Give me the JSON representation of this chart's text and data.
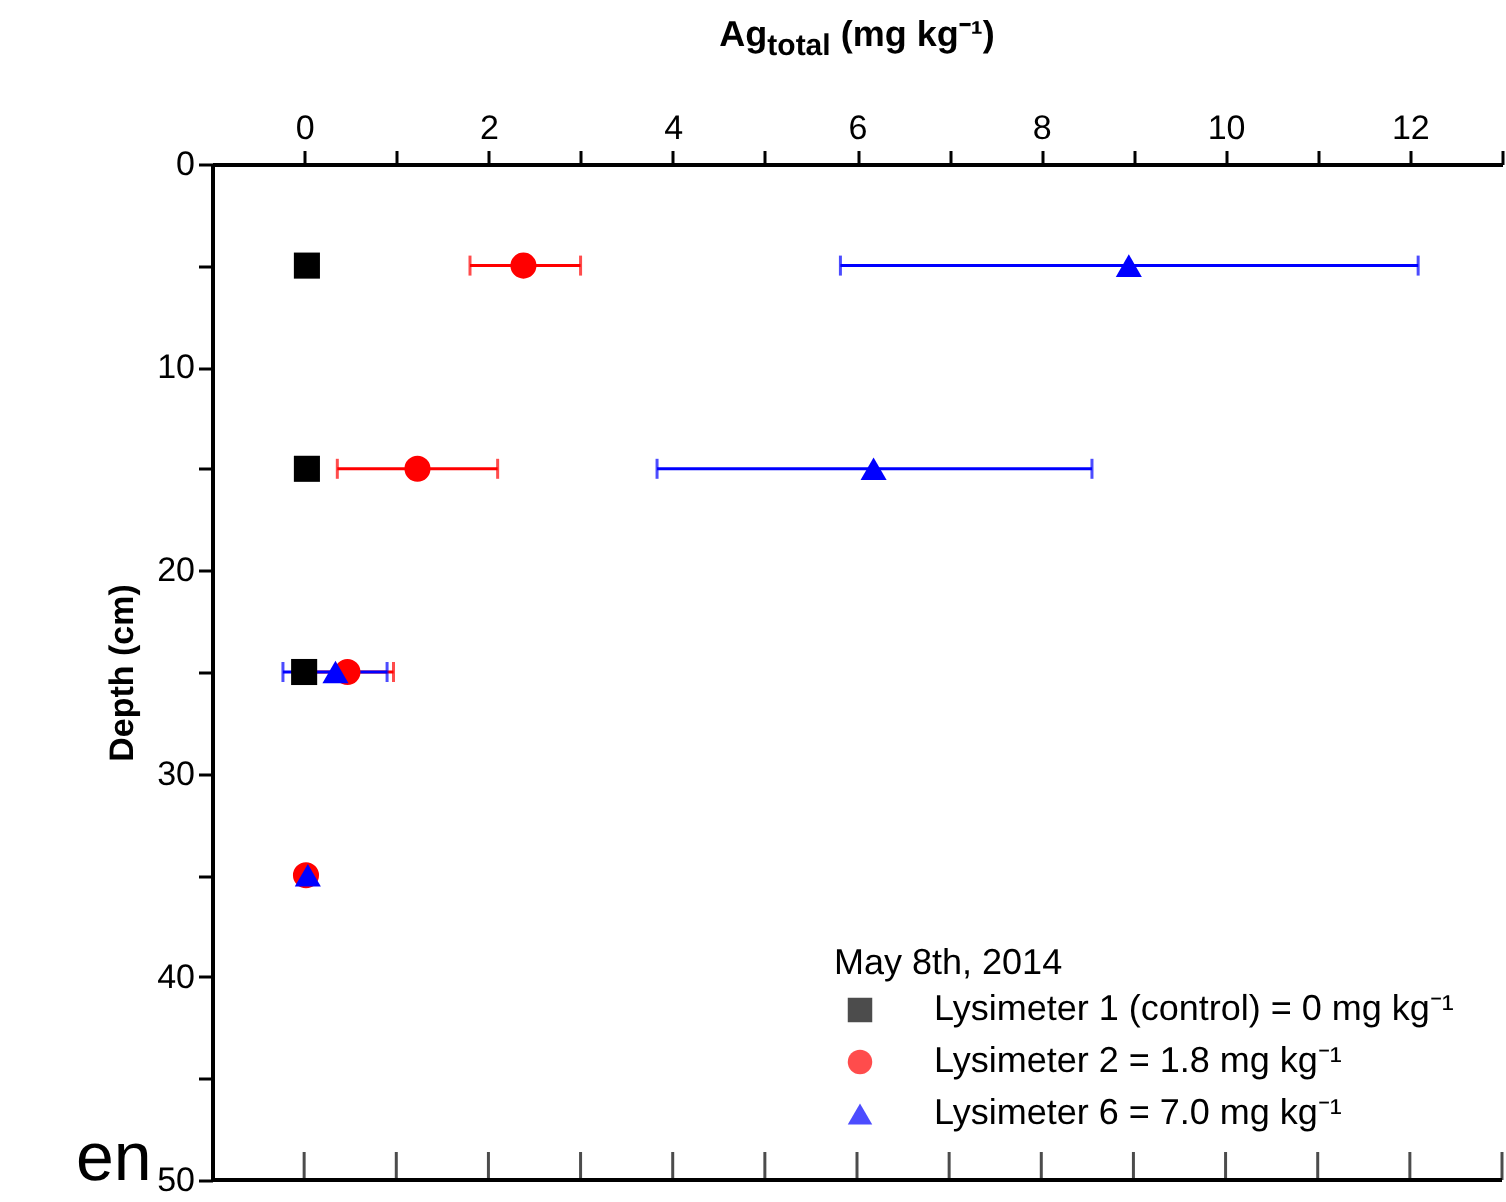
{
  "chart_data": {
    "type": "scatter",
    "xlabel": "Ag$_{total}$ (mg kg⁻¹)",
    "ylabel": "Depth (cm)",
    "legend_title": "May 8th, 2014",
    "xlim": [
      -1,
      13
    ],
    "xticks": [
      0,
      {
        "value": 1,
        "label": null
      },
      2,
      {
        "value": 3,
        "label": null
      },
      4,
      {
        "value": 5,
        "label": null
      },
      6,
      {
        "value": 7,
        "label": null
      },
      8,
      {
        "value": 9,
        "label": null
      },
      10,
      {
        "value": 11,
        "label": null
      },
      12,
      {
        "value": 13,
        "label": null
      }
    ],
    "ylim": [
      50,
      0
    ],
    "yticks": [
      0,
      {
        "value": 5,
        "label": null
      },
      10,
      {
        "value": 15,
        "label": null
      },
      20,
      {
        "value": 25,
        "label": null
      },
      30,
      {
        "value": 35,
        "label": null
      },
      40,
      {
        "value": 45,
        "label": null
      },
      50
    ],
    "series": [
      {
        "name": "Lysimeter 1 (control) = 0 mg kg⁻¹",
        "color": "#000000",
        "marker": "square",
        "x": [
          0.03,
          0.03,
          0.0,
          null
        ],
        "values": [
          5,
          15,
          25,
          null
        ]
      },
      {
        "name": "Lysimeter 2 = 1.8 mg kg⁻¹",
        "color": "#ff0000",
        "marker": "circle",
        "x": [
          2.38,
          1.23,
          0.47,
          0.02
        ],
        "values": [
          5,
          15,
          25,
          35
        ],
        "xerrors": [
          [
            1.8,
            3.0
          ],
          [
            0.36,
            2.1
          ],
          0.5,
          null
        ]
      },
      {
        "name": "Lysimeter 6 = 7.0 mg kg⁻¹",
        "color": "#0000ff",
        "marker": "triangle",
        "x": [
          8.95,
          6.18,
          0.34,
          0.04
        ],
        "values": [
          5,
          15,
          25,
          35
        ],
        "xerrors": [
          [
            5.82,
            12.09
          ],
          [
            3.83,
            8.55
          ],
          [
            -0.23,
            0.9
          ],
          null
        ]
      }
    ],
    "legend": "bottom right",
    "grid": false,
    "annotations": [
      "en"
    ]
  }
}
